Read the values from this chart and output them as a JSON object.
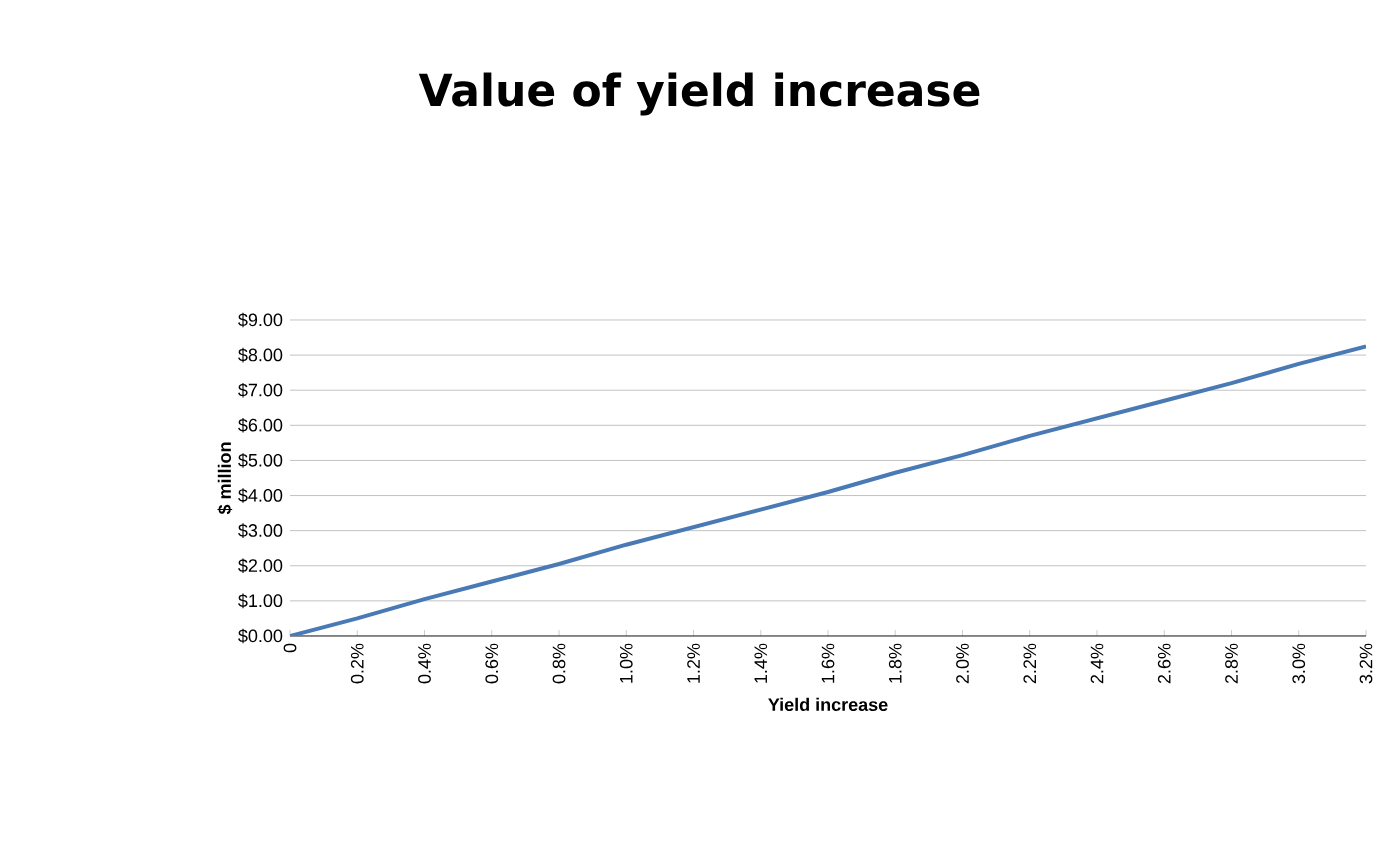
{
  "chart_data": {
    "type": "line",
    "title": "Value of yield increase",
    "xlabel": "Yield increase",
    "ylabel": "$ million",
    "categories": [
      "0",
      "0.2%",
      "0.4%",
      "0.6%",
      "0.8%",
      "1.0%",
      "1.2%",
      "1.4%",
      "1.6%",
      "1.8%",
      "2.0%",
      "2.2%",
      "2.4%",
      "2.6%",
      "2.8%",
      "3.0%",
      "3.2%"
    ],
    "series": [
      {
        "color": "#4a7ab5",
        "values": [
          0,
          0.5,
          1.05,
          1.55,
          2.05,
          2.6,
          3.1,
          3.6,
          4.1,
          4.65,
          5.15,
          5.7,
          6.2,
          6.7,
          7.2,
          7.75,
          8.25
        ]
      }
    ],
    "ylim": [
      0,
      9
    ],
    "yticks": [
      {
        "value": 0,
        "label": "$0.00"
      },
      {
        "value": 1,
        "label": "$1.00"
      },
      {
        "value": 2,
        "label": "$2.00"
      },
      {
        "value": 3,
        "label": "$3.00"
      },
      {
        "value": 4,
        "label": "$4.00"
      },
      {
        "value": 5,
        "label": "$5.00"
      },
      {
        "value": 6,
        "label": "$6.00"
      },
      {
        "value": 7,
        "label": "$7.00"
      },
      {
        "value": 8,
        "label": "$8.00"
      },
      {
        "value": 9,
        "label": "$9.00"
      }
    ],
    "grid": "y",
    "marker": "none",
    "line_style": "solid"
  }
}
